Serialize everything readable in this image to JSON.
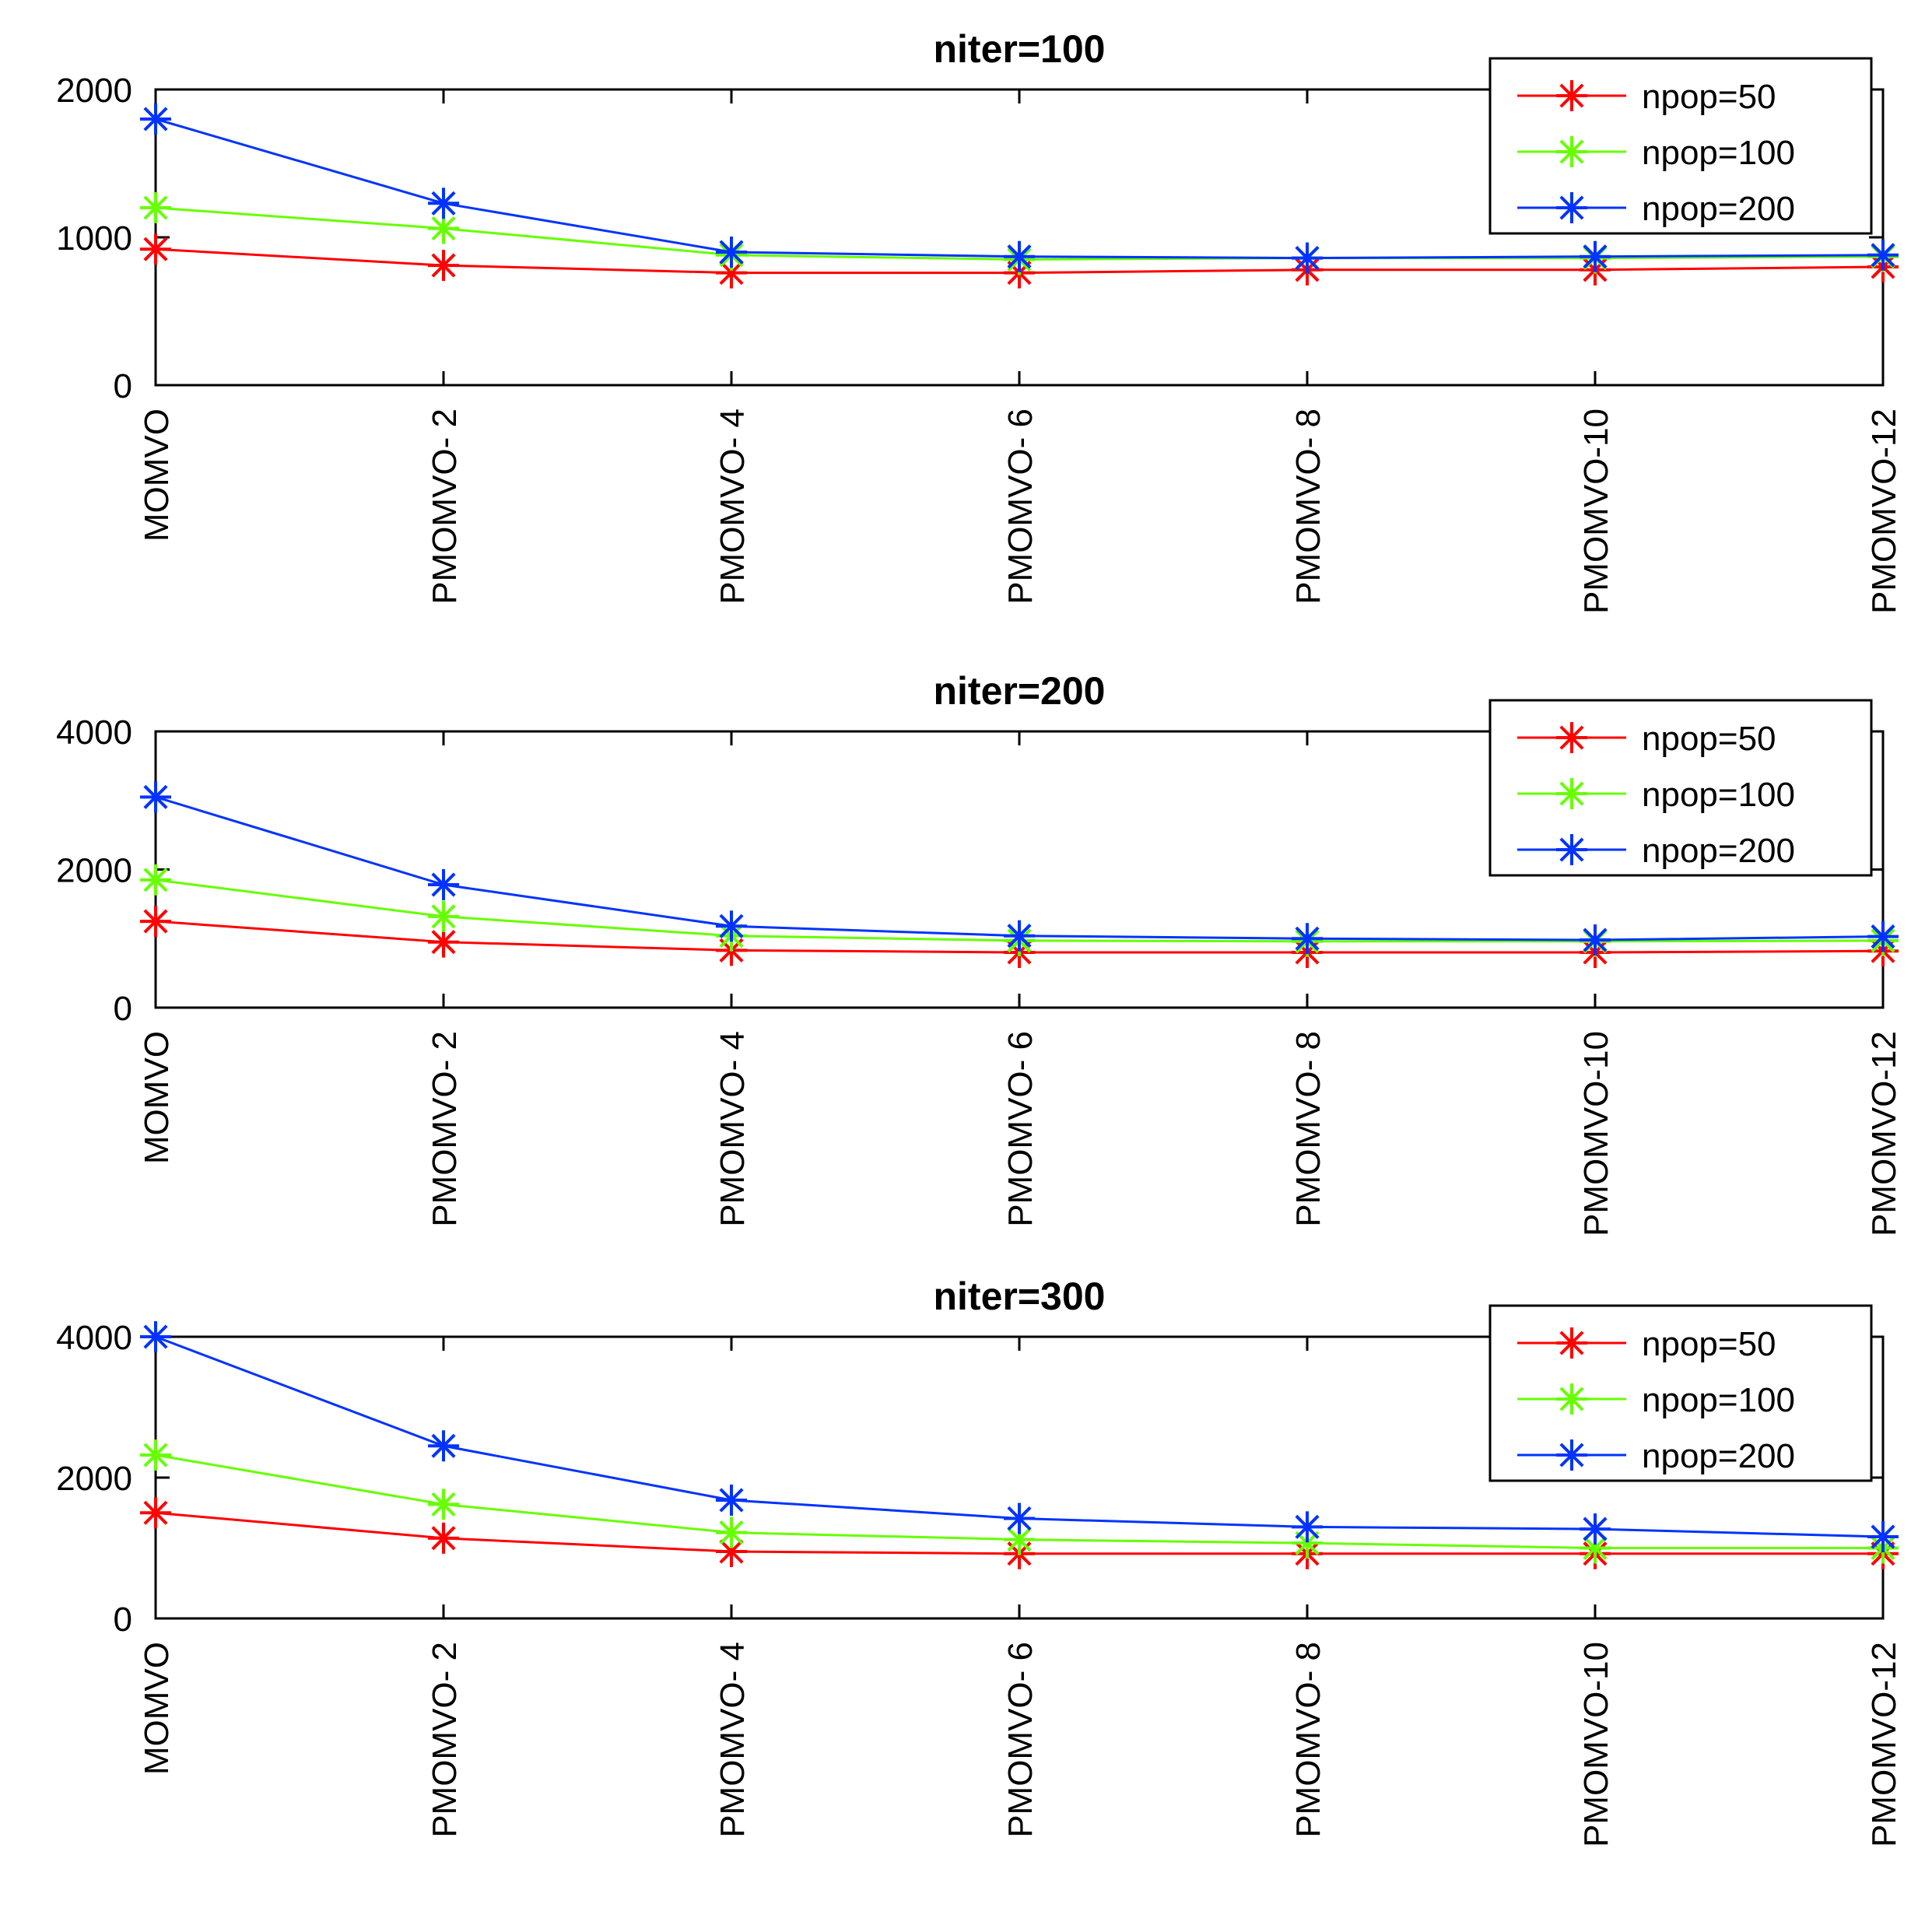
{
  "chart_data": [
    {
      "type": "line",
      "title": "niter=100",
      "categories": [
        "MOMVO",
        "PMOMVO- 2",
        "PMOMVO- 4",
        "PMOMVO- 6",
        "PMOMVO- 8",
        "PMOMVO-10",
        "PMOMVO-12"
      ],
      "ylim": [
        0,
        2000
      ],
      "yticks": [
        "0",
        "1000",
        "2000"
      ],
      "legend_position": "top-right",
      "series": [
        {
          "name": "npop=50",
          "color": "#ff0000",
          "values": [
            920,
            810,
            760,
            760,
            780,
            780,
            800
          ]
        },
        {
          "name": "npop=100",
          "color": "#66ff00",
          "values": [
            1200,
            1060,
            880,
            850,
            860,
            860,
            870
          ]
        },
        {
          "name": "npop=200",
          "color": "#0033ff",
          "values": [
            1800,
            1230,
            900,
            870,
            860,
            870,
            880
          ]
        }
      ]
    },
    {
      "type": "line",
      "title": "niter=200",
      "categories": [
        "MOMVO",
        "PMOMVO- 2",
        "PMOMVO- 4",
        "PMOMVO- 6",
        "PMOMVO- 8",
        "PMOMVO-10",
        "PMOMVO-12"
      ],
      "ylim": [
        0,
        4000
      ],
      "yticks": [
        "0",
        "2000",
        "4000"
      ],
      "legend_position": "top-right",
      "series": [
        {
          "name": "npop=50",
          "color": "#ff0000",
          "values": [
            1250,
            950,
            830,
            800,
            800,
            800,
            820
          ]
        },
        {
          "name": "npop=100",
          "color": "#66ff00",
          "values": [
            1850,
            1320,
            1040,
            970,
            960,
            960,
            970
          ]
        },
        {
          "name": "npop=200",
          "color": "#0033ff",
          "values": [
            3050,
            1780,
            1180,
            1040,
            1000,
            980,
            1030
          ]
        }
      ]
    },
    {
      "type": "line",
      "title": "niter=300",
      "categories": [
        "MOMVO",
        "PMOMVO- 2",
        "PMOMVO- 4",
        "PMOMVO- 6",
        "PMOMVO- 8",
        "PMOMVO-10",
        "PMOMVO-12"
      ],
      "ylim": [
        0,
        4000
      ],
      "yticks": [
        "0",
        "2000",
        "4000"
      ],
      "legend_position": "top-right",
      "series": [
        {
          "name": "npop=50",
          "color": "#ff0000",
          "values": [
            1500,
            1140,
            950,
            920,
            920,
            920,
            920
          ]
        },
        {
          "name": "npop=100",
          "color": "#66ff00",
          "values": [
            2320,
            1620,
            1220,
            1120,
            1070,
            1000,
            1000
          ]
        },
        {
          "name": "npop=200",
          "color": "#0033ff",
          "values": [
            4000,
            2450,
            1680,
            1420,
            1300,
            1270,
            1160
          ]
        }
      ]
    }
  ]
}
